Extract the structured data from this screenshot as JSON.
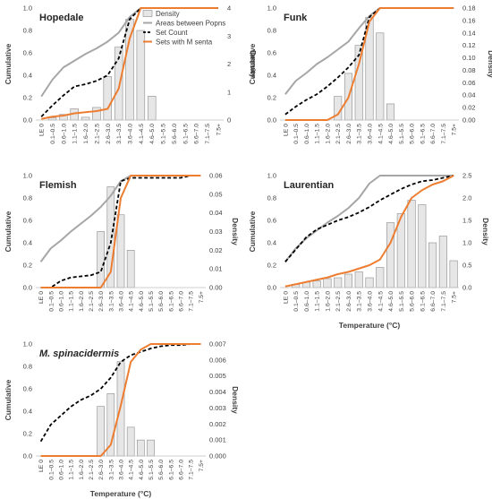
{
  "categories": [
    "LE 0",
    "0.1–0.5",
    "0.6–1.0",
    "1.1–1.5",
    "1.6–2.0",
    "2.1–2.5",
    "2.6–3.0",
    "3.1–3.5",
    "3.6–4.0",
    "4.1–4.5",
    "4.6–5.0",
    "5.1–5.5",
    "5.6–6.0",
    "6.1–6.5",
    "6.6–7.0",
    "7.1–7.5",
    "7.5+"
  ],
  "legend": {
    "density": "Density",
    "areas": "Areas between Popns",
    "setcount": "Set Count",
    "msenta": "Sets with M senta"
  },
  "colors": {
    "areas": "#a6a6a6",
    "setcount": "#000000",
    "msenta": "#ed7d31",
    "bars_fill": "#e7e6e6",
    "bars_stroke": "#8c8c8c"
  },
  "chart_data": [
    {
      "type": "bar+line",
      "title": "Hopedale",
      "title_italic": false,
      "ylabel_left": "Cumulative",
      "ylabel_right": "Density",
      "xlabel": "",
      "ylim_left": [
        0,
        1.0
      ],
      "yticks_left": [
        "0.0",
        "0.2",
        "0.4",
        "0.6",
        "0.8",
        "1.0"
      ],
      "ylim_right": [
        0,
        4
      ],
      "yticks_right": [
        "0",
        "1",
        "2",
        "3",
        "4"
      ],
      "density": [
        0,
        0.08,
        0.2,
        0.4,
        0.1,
        0.45,
        1.55,
        2.6,
        3.6,
        3.2,
        0.85,
        0,
        0,
        0,
        0,
        0,
        0
      ],
      "series_areas": [
        0.21,
        0.36,
        0.47,
        0.53,
        0.59,
        0.64,
        0.7,
        0.78,
        0.92,
        1.0,
        1.0,
        1.0,
        1.0,
        1.0,
        1.0,
        1.0,
        1.0
      ],
      "series_setcount": [
        0.03,
        0.13,
        0.22,
        0.3,
        0.32,
        0.35,
        0.4,
        0.55,
        0.9,
        1.0,
        1.0,
        1.0,
        1.0,
        1.0,
        1.0,
        1.0,
        1.0
      ],
      "series_msenta": [
        0.01,
        0.03,
        0.04,
        0.06,
        0.07,
        0.08,
        0.1,
        0.28,
        0.73,
        1.0,
        1.0,
        1.0,
        1.0,
        1.0,
        1.0,
        1.0,
        1.0
      ]
    },
    {
      "type": "bar+line",
      "title": "Funk",
      "title_italic": false,
      "ylabel_left": "Cumulative",
      "ylabel_right": "Density",
      "xlabel": "",
      "ylim_left": [
        0,
        1.0
      ],
      "yticks_left": [
        "0.0",
        "0.2",
        "0.4",
        "0.6",
        "0.8",
        "1.0"
      ],
      "ylim_right": [
        0,
        0.18
      ],
      "yticks_right": [
        "0.00",
        "0.02",
        "0.04",
        "0.06",
        "0.08",
        "0.10",
        "0.12",
        "0.14",
        "0.16",
        "0.18"
      ],
      "density": [
        0,
        0,
        0,
        0,
        0,
        0.038,
        0.075,
        0.12,
        0.165,
        0.14,
        0.026,
        0,
        0,
        0,
        0,
        0,
        0
      ],
      "series_areas": [
        0.23,
        0.35,
        0.42,
        0.5,
        0.56,
        0.63,
        0.7,
        0.82,
        0.93,
        1.0,
        1.0,
        1.0,
        1.0,
        1.0,
        1.0,
        1.0,
        1.0
      ],
      "series_setcount": [
        0.05,
        0.12,
        0.18,
        0.23,
        0.3,
        0.38,
        0.47,
        0.58,
        0.92,
        1.0,
        1.0,
        1.0,
        1.0,
        1.0,
        1.0,
        1.0,
        1.0
      ],
      "series_msenta": [
        0.0,
        0.0,
        0.0,
        0.0,
        0.0,
        0.05,
        0.2,
        0.5,
        0.88,
        1.0,
        1.0,
        1.0,
        1.0,
        1.0,
        1.0,
        1.0,
        1.0
      ]
    },
    {
      "type": "bar+line",
      "title": "Flemish",
      "title_italic": false,
      "ylabel_left": "Cumulative",
      "ylabel_right": "Density",
      "xlabel": "",
      "ylim_left": [
        0,
        1.0
      ],
      "yticks_left": [
        "0.0",
        "0.2",
        "0.4",
        "0.6",
        "0.8",
        "1.0"
      ],
      "ylim_right": [
        0,
        0.06
      ],
      "yticks_right": [
        "0.00",
        "0.01",
        "0.02",
        "0.03",
        "0.04",
        "0.05",
        "0.06"
      ],
      "density": [
        0,
        0,
        0,
        0,
        0,
        0.0,
        0.03,
        0.054,
        0.039,
        0.02,
        0,
        0,
        0,
        0,
        0,
        0,
        0
      ],
      "series_areas": [
        0.23,
        0.35,
        0.42,
        0.5,
        0.57,
        0.64,
        0.72,
        0.82,
        0.95,
        1.0,
        1.0,
        1.0,
        1.0,
        1.0,
        1.0,
        1.0,
        1.0
      ],
      "series_setcount": [
        0.0,
        0.0,
        0.06,
        0.09,
        0.1,
        0.11,
        0.14,
        0.4,
        0.95,
        0.98,
        0.98,
        0.98,
        0.98,
        0.98,
        0.98,
        1.0,
        1.0
      ],
      "series_msenta": [
        0.0,
        0.0,
        0.0,
        0.0,
        0.0,
        0.0,
        0.0,
        0.14,
        0.8,
        1.0,
        1.0,
        1.0,
        1.0,
        1.0,
        1.0,
        1.0,
        1.0
      ]
    },
    {
      "type": "bar+line",
      "title": "Laurentian",
      "title_italic": false,
      "ylabel_left": "Cumulative",
      "ylabel_right": "Density",
      "xlabel": "Temperature (°C)",
      "ylim_left": [
        0,
        1.0
      ],
      "yticks_left": [
        "0.0",
        "0.2",
        "0.4",
        "0.6",
        "0.8",
        "1.0"
      ],
      "ylim_right": [
        0,
        2.5
      ],
      "yticks_right": [
        "0.0",
        "0.5",
        "1.0",
        "1.5",
        "2.0",
        "2.5"
      ],
      "density": [
        0,
        0.07,
        0.12,
        0.15,
        0.2,
        0.22,
        0.3,
        0.35,
        0.22,
        0.45,
        1.45,
        1.65,
        1.95,
        1.85,
        1.0,
        1.15,
        0.6
      ],
      "series_areas": [
        0.23,
        0.35,
        0.44,
        0.51,
        0.58,
        0.64,
        0.71,
        0.8,
        0.93,
        1.0,
        1.0,
        1.0,
        1.0,
        1.0,
        1.0,
        1.0,
        1.0
      ],
      "series_setcount": [
        0.23,
        0.34,
        0.45,
        0.52,
        0.56,
        0.6,
        0.63,
        0.67,
        0.72,
        0.78,
        0.83,
        0.88,
        0.92,
        0.95,
        0.96,
        0.98,
        1.0
      ],
      "series_msenta": [
        0.01,
        0.03,
        0.05,
        0.07,
        0.09,
        0.12,
        0.14,
        0.17,
        0.2,
        0.25,
        0.4,
        0.63,
        0.8,
        0.87,
        0.92,
        0.95,
        1.0
      ]
    },
    {
      "type": "bar+line",
      "title": "M. spinacidermis",
      "title_italic": true,
      "ylabel_left": "Cumulative",
      "ylabel_right": "Density",
      "xlabel": "Temperature (°C)",
      "ylim_left": [
        0,
        1.0
      ],
      "yticks_left": [
        "0.0",
        "0.2",
        "0.4",
        "0.6",
        "0.8",
        "1.0"
      ],
      "ylim_right": [
        0,
        0.007
      ],
      "yticks_right": [
        "0.000",
        "0.001",
        "0.002",
        "0.003",
        "0.004",
        "0.005",
        "0.006",
        "0.007"
      ],
      "density": [
        0,
        0,
        0,
        0,
        0,
        0,
        0.0031,
        0.0039,
        0.0059,
        0.0018,
        0.001,
        0.001,
        0,
        0,
        0,
        0,
        0
      ],
      "series_areas": [],
      "series_setcount": [
        0.13,
        0.28,
        0.36,
        0.44,
        0.5,
        0.54,
        0.6,
        0.7,
        0.84,
        0.9,
        0.93,
        0.96,
        0.98,
        0.99,
        0.99,
        1.0,
        1.0
      ],
      "series_msenta": [
        0.0,
        0.0,
        0.0,
        0.0,
        0.0,
        0.0,
        0.0,
        0.1,
        0.45,
        0.84,
        0.95,
        1.0,
        1.0,
        1.0,
        1.0,
        1.0,
        1.0
      ]
    }
  ]
}
